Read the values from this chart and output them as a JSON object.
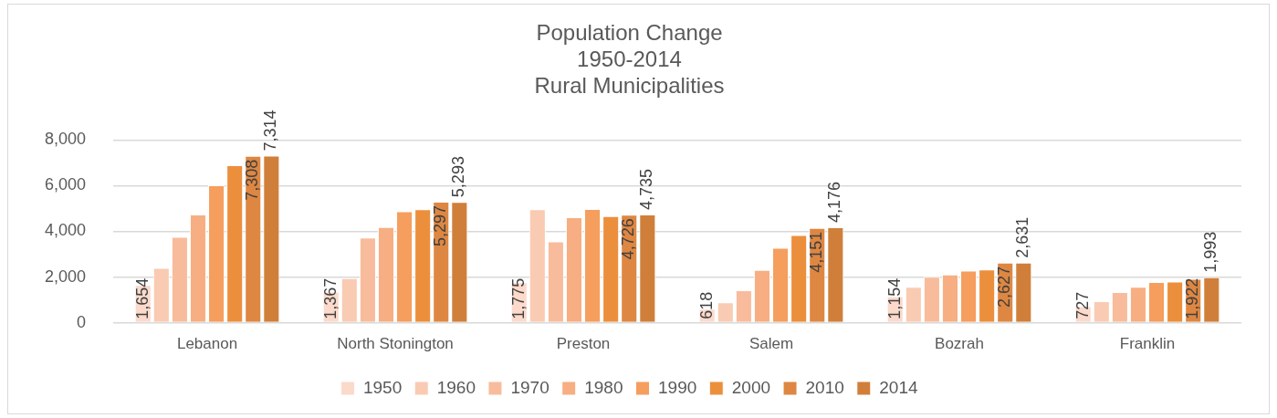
{
  "chart_data": {
    "type": "bar",
    "title": "Population Change\n1950-2014\nRural Municipalities",
    "categories": [
      "Lebanon",
      "North Stonington",
      "Preston",
      "Salem",
      "Bozrah",
      "Franklin"
    ],
    "series": [
      {
        "name": "1950",
        "color": "#fbdacb",
        "values": [
          1654,
          1367,
          1775,
          618,
          1154,
          727
        ],
        "value_labels": [
          "1,654",
          "1,367",
          "1,775",
          "618",
          "1,154",
          "727"
        ]
      },
      {
        "name": "1960",
        "color": "#f9cbb3",
        "values": [
          2400,
          1950,
          4970,
          890,
          1570,
          940
        ]
      },
      {
        "name": "1970",
        "color": "#f8bc9c",
        "values": [
          3760,
          3730,
          3560,
          1420,
          2010,
          1340
        ]
      },
      {
        "name": "1980",
        "color": "#f7ae82",
        "values": [
          4740,
          4190,
          4620,
          2310,
          2110,
          1570
        ]
      },
      {
        "name": "1990",
        "color": "#f59e5e",
        "values": [
          6020,
          4880,
          4980,
          3280,
          2280,
          1780
        ]
      },
      {
        "name": "2000",
        "color": "#ec8f3d",
        "values": [
          6900,
          4970,
          4670,
          3840,
          2330,
          1800
        ]
      },
      {
        "name": "2010",
        "color": "#de8742",
        "values": [
          7308,
          5297,
          4726,
          4151,
          2627,
          1922
        ],
        "value_labels": [
          "7,308",
          "5,297",
          "4,726",
          "4,151",
          "2,627",
          "1,922"
        ]
      },
      {
        "name": "2014",
        "color": "#d07f3a",
        "values": [
          7314,
          5293,
          4735,
          4176,
          2631,
          1993
        ],
        "value_labels": [
          "7,314",
          "5,293",
          "4,735",
          "4,176",
          "2,631",
          "1,993"
        ]
      }
    ],
    "ylim": [
      0,
      8000
    ],
    "yticks": [
      {
        "value": 0,
        "label": "0"
      },
      {
        "value": 2000,
        "label": "2,000"
      },
      {
        "value": 4000,
        "label": "4,000"
      },
      {
        "value": 6000,
        "label": "6,000"
      },
      {
        "value": 8000,
        "label": "8,000"
      }
    ],
    "grid": "y",
    "legend": "bottom"
  }
}
